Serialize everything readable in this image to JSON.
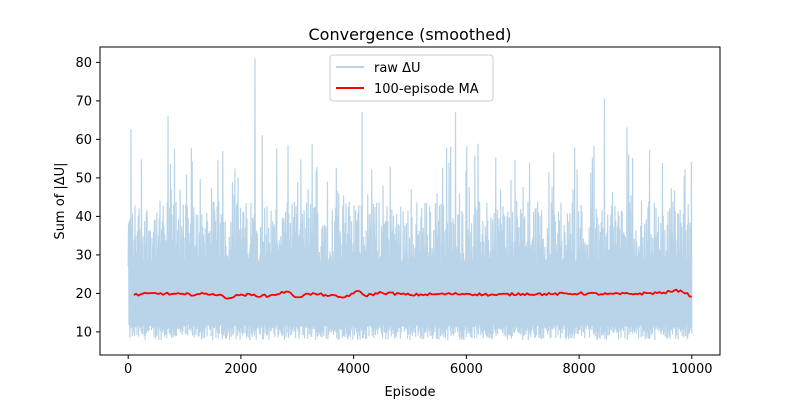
{
  "chart_data": {
    "type": "line",
    "title": "Convergence (smoothed)",
    "xlabel": "Episode",
    "ylabel": "Sum of |ΔU|",
    "xlim": [
      -500,
      10500
    ],
    "ylim": [
      4,
      84
    ],
    "xticks": [
      0,
      2000,
      4000,
      6000,
      8000,
      10000
    ],
    "xtick_labels": [
      "0",
      "2000",
      "4000",
      "6000",
      "8000",
      "10000"
    ],
    "yticks": [
      10,
      20,
      30,
      40,
      50,
      60,
      70,
      80
    ],
    "ytick_labels": [
      "10",
      "20",
      "30",
      "40",
      "50",
      "60",
      "70",
      "80"
    ],
    "grid": false,
    "legend_position": "upper center",
    "series": [
      {
        "name": "raw ΔU",
        "color": "#b9d4e8",
        "style": "noisy band",
        "x_range": [
          0,
          10000
        ],
        "typical_min": 8,
        "typical_max": 40,
        "peaks": [
          {
            "x": 50,
            "y": 62.5
          },
          {
            "x": 700,
            "y": 66
          },
          {
            "x": 2250,
            "y": 81
          },
          {
            "x": 2380,
            "y": 61
          },
          {
            "x": 4150,
            "y": 67
          },
          {
            "x": 5800,
            "y": 67
          },
          {
            "x": 8450,
            "y": 70.5
          },
          {
            "x": 8850,
            "y": 63
          }
        ]
      },
      {
        "name": "100-episode MA",
        "color": "#ff0000",
        "style": "solid",
        "x": [
          100,
          500,
          1000,
          1500,
          1800,
          2000,
          2500,
          2800,
          3000,
          3200,
          3500,
          3800,
          4000,
          4100,
          4200,
          4500,
          5000,
          5500,
          6000,
          6500,
          7000,
          7500,
          8000,
          8500,
          9000,
          9500,
          9800,
          10000
        ],
        "values": [
          19.6,
          20.0,
          19.7,
          19.9,
          18.8,
          19.7,
          19.3,
          20.5,
          19.0,
          19.9,
          19.6,
          18.9,
          20.0,
          20.6,
          19.4,
          20.2,
          19.6,
          19.8,
          19.9,
          19.6,
          19.9,
          19.8,
          20.0,
          19.8,
          19.9,
          20.2,
          20.8,
          19.2
        ]
      }
    ]
  }
}
